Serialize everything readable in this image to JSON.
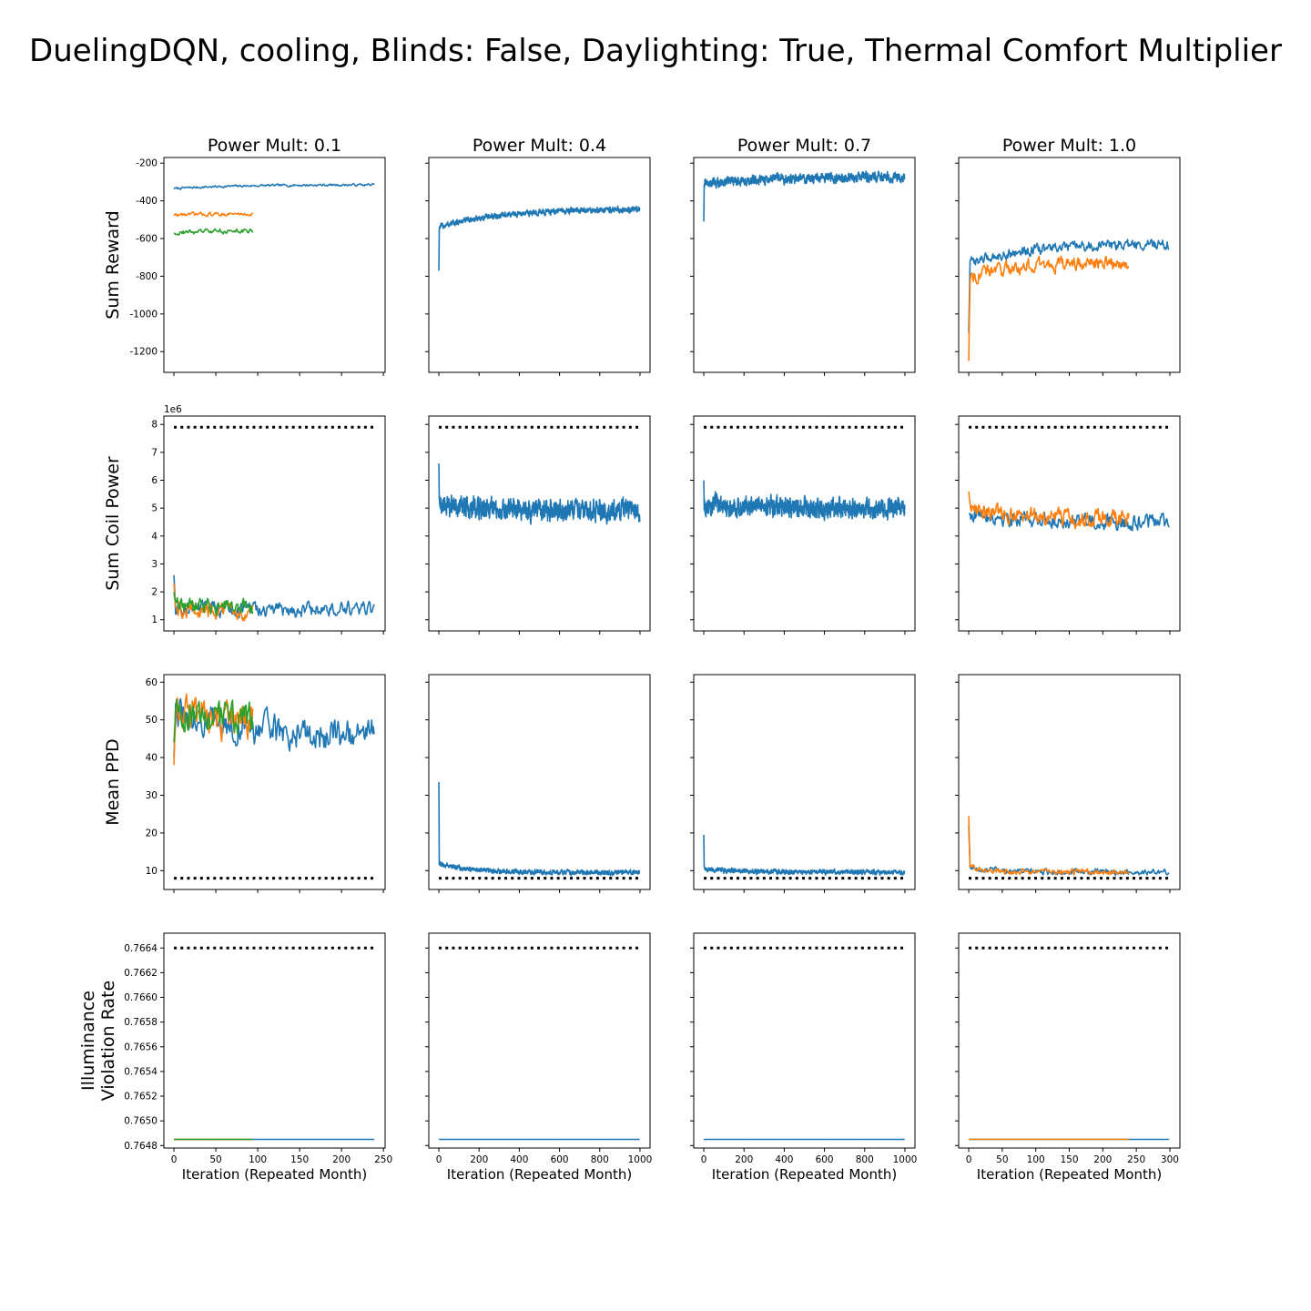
{
  "figure": {
    "title": "DuelingDQN, cooling, Blinds: False, Daylighting: True, Thermal Comfort Multiplier",
    "colors": {
      "c0": "#1f77b4",
      "c1": "#ff7f0e",
      "c2": "#2ca02c",
      "ref": "#000000"
    }
  },
  "chart_data": [
    {
      "type": "line",
      "panel": "r0c0",
      "title": "Power Mult: 0.1",
      "ylabel": "Sum Reward",
      "xlim": [
        -12,
        252
      ],
      "ylim": [
        -1310,
        -170
      ],
      "yticks": [
        -200,
        -400,
        -600,
        -800,
        -1000,
        -1200
      ],
      "xticks": [
        0,
        50,
        100,
        150,
        200,
        250
      ],
      "series": [
        {
          "color": "c0",
          "n": 240,
          "start": -335,
          "end": -315,
          "noise": 5
        },
        {
          "color": "c1",
          "n": 95,
          "start": -475,
          "end": -470,
          "noise": 8
        },
        {
          "color": "c2",
          "n": 95,
          "start": -570,
          "end": -560,
          "noise": 10
        }
      ]
    },
    {
      "type": "line",
      "panel": "r0c1",
      "title": "Power Mult: 0.4",
      "ylabel": "",
      "xlim": [
        -50,
        1050
      ],
      "ylim": [
        -1310,
        -170
      ],
      "yticks": [
        -200,
        -400,
        -600,
        -800,
        -1000,
        -1200
      ],
      "xticks": [
        0,
        200,
        400,
        600,
        800,
        1000
      ],
      "series": [
        {
          "color": "c0",
          "n": 1000,
          "start": -540,
          "end": -445,
          "noise": 12,
          "spike": -770
        }
      ]
    },
    {
      "type": "line",
      "panel": "r0c2",
      "title": "Power Mult: 0.7",
      "ylabel": "",
      "xlim": [
        -50,
        1050
      ],
      "ylim": [
        -1310,
        -170
      ],
      "yticks": [
        -200,
        -400,
        -600,
        -800,
        -1000,
        -1200
      ],
      "xticks": [
        0,
        200,
        400,
        600,
        800,
        1000
      ],
      "series": [
        {
          "color": "c0",
          "n": 1000,
          "start": -310,
          "end": -275,
          "noise": 20,
          "spike": -510
        }
      ]
    },
    {
      "type": "line",
      "panel": "r0c3",
      "title": "Power Mult: 1.0",
      "ylabel": "",
      "xlim": [
        -15,
        315
      ],
      "ylim": [
        -1310,
        -170
      ],
      "yticks": [
        -200,
        -400,
        -600,
        -800,
        -1000,
        -1200
      ],
      "xticks": [
        0,
        50,
        100,
        150,
        200,
        250,
        300
      ],
      "series": [
        {
          "color": "c0",
          "n": 300,
          "start": -730,
          "end": -630,
          "noise": 22,
          "spike": -1100
        },
        {
          "color": "c1",
          "n": 240,
          "start": -800,
          "end": -730,
          "noise": 30,
          "spike": -1250
        }
      ]
    },
    {
      "type": "line",
      "panel": "r1c0",
      "ylabel": "Sum Coil Power",
      "multiplier": "1e6",
      "xlim": [
        -12,
        252
      ],
      "ylim": [
        0.6,
        8.3
      ],
      "yticks": [
        1,
        2,
        3,
        4,
        5,
        6,
        7,
        8
      ],
      "xticks": [
        0,
        50,
        100,
        150,
        200,
        250
      ],
      "ref": 7.9,
      "series": [
        {
          "color": "c0",
          "n": 240,
          "start": 1.4,
          "end": 1.35,
          "noise": 0.22,
          "spike": 2.6
        },
        {
          "color": "c1",
          "n": 95,
          "start": 1.4,
          "end": 1.3,
          "noise": 0.25,
          "spike": 2.3
        },
        {
          "color": "c2",
          "n": 95,
          "start": 1.5,
          "end": 1.5,
          "noise": 0.25,
          "spike": 2.0
        }
      ]
    },
    {
      "type": "line",
      "panel": "r1c1",
      "ylabel": "",
      "xlim": [
        -50,
        1050
      ],
      "ylim": [
        0.6,
        8.3
      ],
      "yticks": [
        1,
        2,
        3,
        4,
        5,
        6,
        7,
        8
      ],
      "xticks": [
        0,
        200,
        400,
        600,
        800,
        1000
      ],
      "ref": 7.9,
      "series": [
        {
          "color": "c0",
          "n": 1000,
          "start": 5.1,
          "end": 4.9,
          "noise": 0.3,
          "spike": 6.6
        }
      ]
    },
    {
      "type": "line",
      "panel": "r1c2",
      "ylabel": "",
      "xlim": [
        -50,
        1050
      ],
      "ylim": [
        0.6,
        8.3
      ],
      "yticks": [
        1,
        2,
        3,
        4,
        5,
        6,
        7,
        8
      ],
      "xticks": [
        0,
        200,
        400,
        600,
        800,
        1000
      ],
      "ref": 7.9,
      "series": [
        {
          "color": "c0",
          "n": 1000,
          "start": 5.1,
          "end": 5.0,
          "noise": 0.28,
          "spike": 6.0
        }
      ]
    },
    {
      "type": "line",
      "panel": "r1c3",
      "ylabel": "",
      "xlim": [
        -15,
        315
      ],
      "ylim": [
        0.6,
        8.3
      ],
      "yticks": [
        1,
        2,
        3,
        4,
        5,
        6,
        7,
        8
      ],
      "xticks": [
        0,
        50,
        100,
        150,
        200,
        250,
        300
      ],
      "ref": 7.9,
      "series": [
        {
          "color": "c0",
          "n": 300,
          "start": 4.8,
          "end": 4.5,
          "noise": 0.22
        },
        {
          "color": "c1",
          "n": 240,
          "start": 5.1,
          "end": 4.6,
          "noise": 0.25,
          "spike": 5.6
        }
      ]
    },
    {
      "type": "line",
      "panel": "r2c0",
      "ylabel": "Mean PPD",
      "xlim": [
        -12,
        252
      ],
      "ylim": [
        5,
        62
      ],
      "yticks": [
        10,
        20,
        30,
        40,
        50,
        60
      ],
      "xticks": [
        0,
        50,
        100,
        150,
        200,
        250
      ],
      "ref": 8,
      "series": [
        {
          "color": "c0",
          "n": 240,
          "start": 52,
          "end": 46,
          "noise": 3.5,
          "spike": 40
        },
        {
          "color": "c1",
          "n": 95,
          "start": 53,
          "end": 50,
          "noise": 4,
          "spike": 38
        },
        {
          "color": "c2",
          "n": 95,
          "start": 52,
          "end": 50,
          "noise": 3.5,
          "spike": 44
        }
      ]
    },
    {
      "type": "line",
      "panel": "r2c1",
      "ylabel": "",
      "xlim": [
        -50,
        1050
      ],
      "ylim": [
        5,
        62
      ],
      "yticks": [
        10,
        20,
        30,
        40,
        50,
        60
      ],
      "xticks": [
        0,
        200,
        400,
        600,
        800,
        1000
      ],
      "ref": 8,
      "series": [
        {
          "color": "c0",
          "n": 1000,
          "start": 12,
          "end": 9.5,
          "noise": 0.5,
          "spike": 33.5,
          "decay": true
        }
      ]
    },
    {
      "type": "line",
      "panel": "r2c2",
      "ylabel": "",
      "xlim": [
        -50,
        1050
      ],
      "ylim": [
        5,
        62
      ],
      "yticks": [
        10,
        20,
        30,
        40,
        50,
        60
      ],
      "xticks": [
        0,
        200,
        400,
        600,
        800,
        1000
      ],
      "ref": 8,
      "series": [
        {
          "color": "c0",
          "n": 1000,
          "start": 10.5,
          "end": 9.6,
          "noise": 0.5,
          "spike": 19.5,
          "decay": true
        }
      ]
    },
    {
      "type": "line",
      "panel": "r2c3",
      "ylabel": "",
      "xlim": [
        -15,
        315
      ],
      "ylim": [
        5,
        62
      ],
      "yticks": [
        10,
        20,
        30,
        40,
        50,
        60
      ],
      "xticks": [
        0,
        50,
        100,
        150,
        200,
        250,
        300
      ],
      "ref": 8,
      "series": [
        {
          "color": "c0",
          "n": 300,
          "start": 11,
          "end": 9.6,
          "noise": 0.6,
          "spike": 22,
          "decay": true
        },
        {
          "color": "c1",
          "n": 240,
          "start": 11,
          "end": 9.5,
          "noise": 0.6,
          "spike": 24.5,
          "decay": true
        }
      ]
    },
    {
      "type": "line",
      "panel": "r3c0",
      "ylabel": "Illuminance\nViolation Rate",
      "xlabel": "Iteration (Repeated Month)",
      "xlim": [
        -12,
        252
      ],
      "ylim": [
        0.76478,
        0.76652
      ],
      "yticks": [
        0.7664,
        0.7662,
        0.766,
        0.7658,
        0.7656,
        0.7654,
        0.7652,
        0.765,
        0.7648
      ],
      "xticks": [
        0,
        50,
        100,
        150,
        200,
        250
      ],
      "ref": 0.7664,
      "series": [
        {
          "color": "c0",
          "n": 240,
          "start": 0.76485,
          "end": 0.76485,
          "noise": 0
        },
        {
          "color": "c1",
          "n": 95,
          "start": 0.76485,
          "end": 0.76485,
          "noise": 0
        },
        {
          "color": "c2",
          "n": 95,
          "start": 0.76485,
          "end": 0.76485,
          "noise": 0
        }
      ]
    },
    {
      "type": "line",
      "panel": "r3c1",
      "ylabel": "",
      "xlabel": "Iteration (Repeated Month)",
      "xlim": [
        -50,
        1050
      ],
      "ylim": [
        0.76478,
        0.76652
      ],
      "yticks": [
        0.7664,
        0.7662,
        0.766,
        0.7658,
        0.7656,
        0.7654,
        0.7652,
        0.765,
        0.7648
      ],
      "xticks": [
        0,
        200,
        400,
        600,
        800,
        1000
      ],
      "ref": 0.7664,
      "series": [
        {
          "color": "c0",
          "n": 1000,
          "start": 0.76485,
          "end": 0.76485,
          "noise": 0
        }
      ]
    },
    {
      "type": "line",
      "panel": "r3c2",
      "ylabel": "",
      "xlabel": "Iteration (Repeated Month)",
      "xlim": [
        -50,
        1050
      ],
      "ylim": [
        0.76478,
        0.76652
      ],
      "yticks": [
        0.7664,
        0.7662,
        0.766,
        0.7658,
        0.7656,
        0.7654,
        0.7652,
        0.765,
        0.7648
      ],
      "xticks": [
        0,
        200,
        400,
        600,
        800,
        1000
      ],
      "ref": 0.7664,
      "series": [
        {
          "color": "c0",
          "n": 1000,
          "start": 0.76485,
          "end": 0.76485,
          "noise": 0
        }
      ]
    },
    {
      "type": "line",
      "panel": "r3c3",
      "ylabel": "",
      "xlabel": "Iteration (Repeated Month)",
      "xlim": [
        -15,
        315
      ],
      "ylim": [
        0.76478,
        0.76652
      ],
      "yticks": [
        0.7664,
        0.7662,
        0.766,
        0.7658,
        0.7656,
        0.7654,
        0.7652,
        0.765,
        0.7648
      ],
      "xticks": [
        0,
        50,
        100,
        150,
        200,
        250,
        300
      ],
      "ref": 0.7664,
      "series": [
        {
          "color": "c0",
          "n": 300,
          "start": 0.76485,
          "end": 0.76485,
          "noise": 0
        },
        {
          "color": "c1",
          "n": 240,
          "start": 0.76485,
          "end": 0.76485,
          "noise": 0
        }
      ]
    }
  ]
}
